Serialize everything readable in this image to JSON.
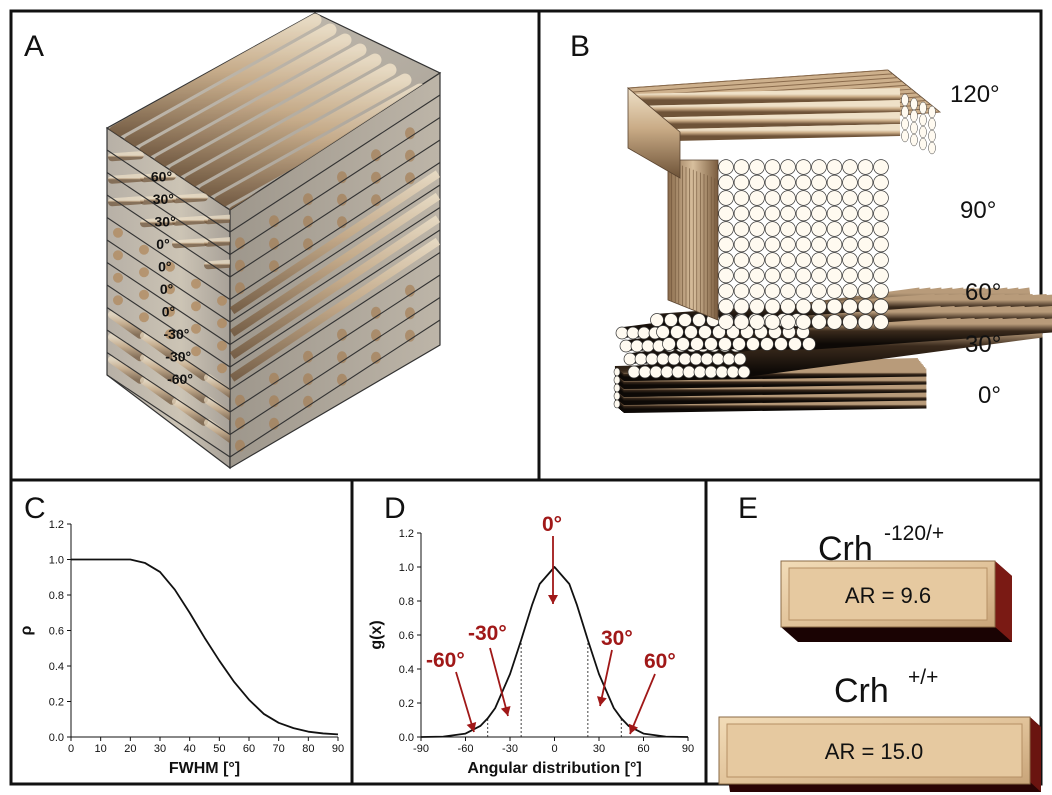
{
  "panels": {
    "a": {
      "label": "A",
      "layers": [
        "60°",
        "30°",
        "30°",
        "0°",
        "0°",
        "0°",
        "0°",
        "-30°",
        "-30°",
        "-60°"
      ]
    },
    "b": {
      "label": "B",
      "angles": [
        "120°",
        "90°",
        "60°",
        "30°",
        "0°"
      ]
    },
    "c": {
      "label": "C"
    },
    "d": {
      "label": "D",
      "annotations": [
        "-60°",
        "-30°",
        "0°",
        "30°",
        "60°"
      ]
    },
    "e": {
      "label": "E",
      "items": [
        {
          "name": "Crh",
          "sup": "-120/+",
          "ar": "AR = 9.6"
        },
        {
          "name": "Crh",
          "sup": "+/+",
          "ar": "AR = 15.0"
        }
      ]
    }
  },
  "chart_data": [
    {
      "type": "line",
      "title": "",
      "xlabel": "FWHM [°]",
      "ylabel": "ρ",
      "xlim": [
        0,
        90
      ],
      "ylim": [
        0,
        1.2
      ],
      "xticks": [
        "0",
        "10",
        "20",
        "30",
        "40",
        "50",
        "60",
        "70",
        "80",
        "90"
      ],
      "yticks": [
        "0.0",
        "0.2",
        "0.4",
        "0.6",
        "0.8",
        "1.0",
        "1.2"
      ],
      "x": [
        0,
        10,
        20,
        25,
        30,
        35,
        40,
        45,
        50,
        55,
        60,
        65,
        70,
        75,
        80,
        85,
        90
      ],
      "y": [
        1.0,
        1.0,
        1.0,
        0.98,
        0.93,
        0.83,
        0.7,
        0.56,
        0.43,
        0.31,
        0.21,
        0.13,
        0.08,
        0.05,
        0.03,
        0.02,
        0.015
      ]
    },
    {
      "type": "line",
      "title": "",
      "xlabel": "Angular distribution [°]",
      "ylabel": "g(x)",
      "xlim": [
        -90,
        90
      ],
      "ylim": [
        0,
        1.2
      ],
      "xticks": [
        "-90",
        "-60",
        "-30",
        "0",
        "30",
        "60",
        "90"
      ],
      "yticks": [
        "0.0",
        "0.2",
        "0.4",
        "0.6",
        "0.8",
        "1.0",
        "1.2"
      ],
      "x": [
        -90,
        -75,
        -60,
        -50,
        -45,
        -40,
        -30,
        -22.5,
        -15,
        -10,
        0,
        10,
        15,
        22.5,
        30,
        40,
        45,
        50,
        60,
        75,
        90
      ],
      "y": [
        0.0,
        0.002,
        0.02,
        0.065,
        0.11,
        0.17,
        0.37,
        0.57,
        0.78,
        0.9,
        1.0,
        0.9,
        0.78,
        0.57,
        0.37,
        0.17,
        0.11,
        0.065,
        0.02,
        0.002,
        0.0
      ],
      "dashed_x": [
        -45,
        -22.5,
        22.5,
        45
      ]
    }
  ]
}
